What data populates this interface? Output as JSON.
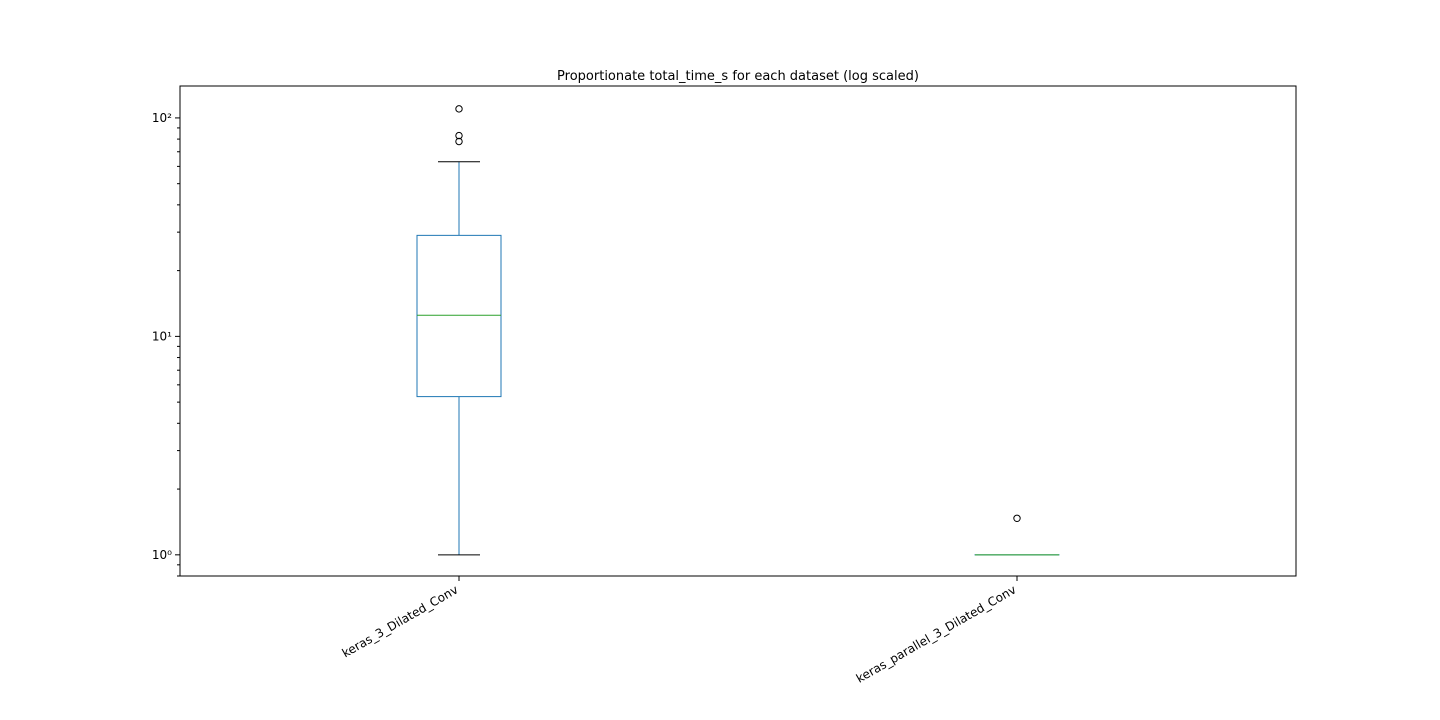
{
  "chart_data": {
    "type": "box",
    "title": "Proportionate total_time_s  for each dataset (log scaled)",
    "xlabel": "",
    "ylabel": "",
    "yscale": "log",
    "ylim": [
      0.8,
      140
    ],
    "yticks": [
      {
        "value": 1,
        "label": "10⁰"
      },
      {
        "value": 10,
        "label": "10¹"
      },
      {
        "value": 100,
        "label": "10²"
      }
    ],
    "categories": [
      "keras_3_Dilated_Conv",
      "keras_parallel_3_Dilated_Conv"
    ],
    "boxes": [
      {
        "category": "keras_3_Dilated_Conv",
        "whisker_low": 1.0,
        "q1": 5.3,
        "median": 12.5,
        "q3": 29.0,
        "whisker_high": 63.0,
        "fliers": [
          78.0,
          83.0,
          110.0
        ]
      },
      {
        "category": "keras_parallel_3_Dilated_Conv",
        "whisker_low": 1.0,
        "q1": 1.0,
        "median": 1.0,
        "q3": 1.0,
        "whisker_high": 1.0,
        "fliers": [
          1.47
        ]
      }
    ],
    "grid": false,
    "legend": "none",
    "colors": {
      "box": "#1f77b4",
      "median": "#2ca02c",
      "whisker_cap": "#000000",
      "flier": "#000000"
    }
  }
}
